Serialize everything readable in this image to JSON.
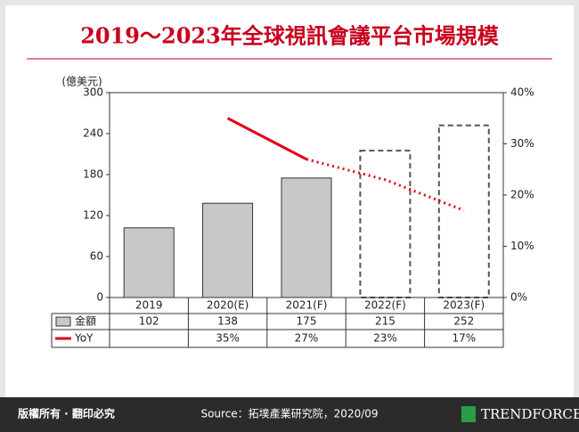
{
  "chart_data": {
    "type": "bar",
    "title": "2019～2023年全球視訊會議平台市場規模",
    "y_label": "(億美元)",
    "categories": [
      "2019",
      "2020(E)",
      "2021(F)",
      "2022(F)",
      "2023(F)"
    ],
    "series": [
      {
        "name": "金額",
        "color": "#c8c8c8",
        "values": [
          102,
          138,
          175,
          215,
          252
        ]
      },
      {
        "name": "YoY",
        "color": "#e2001a",
        "axis": "y2",
        "values": [
          null,
          35,
          27,
          23,
          17
        ],
        "value_labels": [
          null,
          "35%",
          "27%",
          "23%",
          "17%"
        ]
      }
    ],
    "ylim": [
      0,
      300
    ],
    "yticks": [
      0,
      60,
      120,
      180,
      240,
      300
    ],
    "y2lim": [
      0,
      40
    ],
    "y2ticks": [
      {
        "value": 0,
        "label": "0%"
      },
      {
        "value": 10,
        "label": "10%"
      },
      {
        "value": 20,
        "label": "20%"
      },
      {
        "value": 30,
        "label": "30%"
      },
      {
        "value": 40,
        "label": "40%"
      }
    ]
  },
  "footer": {
    "rights": "版權所有 · 翻印必究",
    "source": "Source：拓墣產業研究院，2020/09",
    "logo": "TRENDFORCE"
  }
}
